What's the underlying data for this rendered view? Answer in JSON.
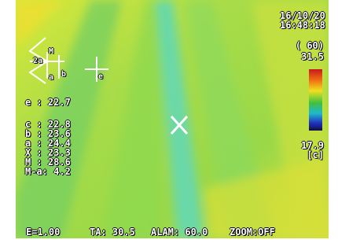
{
  "header": {
    "date": "16/10/20",
    "time": "16:48:18",
    "range": "( 60)",
    "max": "31.5",
    "min": "17.9",
    "unit": "[c]"
  },
  "readings": [
    "e : 22.7",
    "c : 22.8",
    "b : 23.6",
    "a : 24.4",
    "X : 23.3",
    "M : 28.6",
    "M-a: 4.2"
  ],
  "markers": [
    "M",
    "2a",
    "a",
    "b",
    "e"
  ],
  "status": [
    "E=1.00",
    "TA: 30.5",
    "ALAM: 60.0",
    "ZOOM:OFF"
  ]
}
